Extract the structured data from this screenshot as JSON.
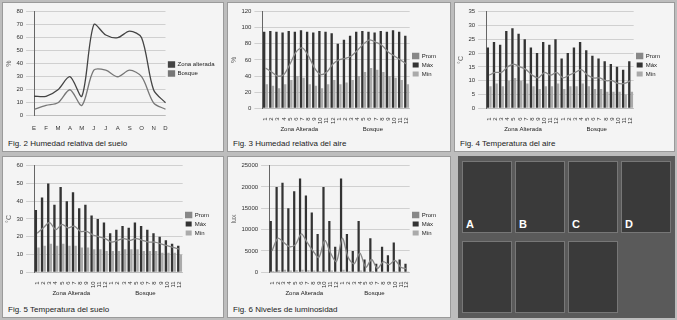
{
  "chart_data": [
    {
      "type": "line",
      "title": "Fig. 2 Humedad relativa del suelo",
      "y_label": "%",
      "categories": [
        "E",
        "F",
        "M",
        "A",
        "M",
        "J",
        "J",
        "A",
        "S",
        "O",
        "N",
        "D"
      ],
      "series": [
        {
          "name": "Zona alterada",
          "color": "#444444",
          "marker": "none",
          "values": [
            15,
            15,
            20,
            30,
            15,
            70,
            62,
            60,
            65,
            60,
            20,
            10
          ]
        },
        {
          "name": "Bosque",
          "color": "#777777",
          "marker": "none",
          "values": [
            5,
            8,
            10,
            20,
            8,
            35,
            35,
            30,
            35,
            30,
            10,
            5
          ]
        }
      ],
      "ylim": [
        0,
        80
      ],
      "yticks": [
        0,
        10,
        20,
        30,
        40,
        50,
        60,
        70,
        80
      ],
      "grid": true,
      "legend": "right"
    },
    {
      "type": "bar",
      "title": "Fig. 3 Humedad relativa del aire",
      "y_label": "%",
      "categories": [
        "1",
        "2",
        "3",
        "4",
        "5",
        "6",
        "7",
        "8",
        "9",
        "10",
        "11",
        "12",
        "1",
        "2",
        "3",
        "4",
        "5",
        "6",
        "7",
        "8",
        "9",
        "10",
        "11",
        "12"
      ],
      "group_labels": [
        "Zona Alterada",
        "Bosque"
      ],
      "series": [
        {
          "name": "Máx",
          "color": "#333333",
          "values": [
            95,
            96,
            95,
            94,
            96,
            95,
            97,
            95,
            94,
            96,
            95,
            93,
            80,
            85,
            90,
            95,
            96,
            95,
            94,
            96,
            95,
            97,
            95,
            90
          ]
        },
        {
          "name": "Mín",
          "color": "#aaaaaa",
          "values": [
            30,
            28,
            25,
            30,
            35,
            40,
            38,
            30,
            28,
            25,
            30,
            35,
            30,
            32,
            35,
            40,
            45,
            50,
            48,
            45,
            40,
            38,
            35,
            30
          ]
        },
        {
          "name": "Prom",
          "color": "#888888",
          "type": "line",
          "marker": "none",
          "values": [
            50,
            45,
            40,
            42,
            55,
            70,
            75,
            65,
            50,
            42,
            45,
            55,
            60,
            62,
            65,
            72,
            80,
            85,
            82,
            78,
            70,
            65,
            60,
            55
          ]
        }
      ],
      "ylim": [
        0,
        120
      ],
      "yticks": [
        0,
        20,
        40,
        60,
        80,
        100,
        120
      ],
      "grid": true,
      "legend": "right"
    },
    {
      "type": "bar",
      "title": "Fig. 4 Temperatura del aire",
      "y_label": "°C",
      "categories": [
        "1",
        "2",
        "3",
        "4",
        "5",
        "6",
        "7",
        "8",
        "9",
        "10",
        "11",
        "12",
        "1",
        "2",
        "3",
        "4",
        "5",
        "6",
        "7",
        "8",
        "9",
        "10",
        "11",
        "12"
      ],
      "group_labels": [
        "Zona Alterada",
        "Bosque"
      ],
      "series": [
        {
          "name": "Máx",
          "color": "#333333",
          "values": [
            22,
            24,
            23,
            28,
            29,
            27,
            25,
            22,
            20,
            24,
            23,
            25,
            18,
            20,
            22,
            24,
            21,
            19,
            18,
            17,
            16,
            15,
            14,
            17
          ]
        },
        {
          "name": "Mín",
          "color": "#aaaaaa",
          "values": [
            8,
            9,
            8,
            10,
            11,
            10,
            9,
            8,
            7,
            8,
            8,
            9,
            7,
            8,
            8,
            9,
            8,
            7,
            7,
            6,
            6,
            6,
            5,
            6
          ]
        },
        {
          "name": "Prom",
          "color": "#888888",
          "type": "line",
          "marker": "none",
          "values": [
            12,
            13,
            13,
            15,
            16,
            15,
            14,
            12,
            11,
            13,
            12,
            13,
            11,
            12,
            13,
            14,
            12,
            11,
            11,
            10,
            10,
            9,
            9,
            10
          ]
        }
      ],
      "ylim": [
        0,
        35
      ],
      "yticks": [
        0,
        5,
        10,
        15,
        20,
        25,
        30,
        35
      ],
      "grid": true,
      "legend": "right"
    },
    {
      "type": "bar",
      "title": "Fig. 5 Temperatura del suelo",
      "y_label": "°C",
      "categories": [
        "1",
        "2",
        "3",
        "4",
        "5",
        "6",
        "7",
        "8",
        "9",
        "10",
        "11",
        "12",
        "1",
        "2",
        "3",
        "4",
        "5",
        "6",
        "7",
        "8",
        "9",
        "10",
        "11",
        "12"
      ],
      "group_labels": [
        "Zona Alterada",
        "Bosque"
      ],
      "series": [
        {
          "name": "Máx",
          "color": "#333333",
          "values": [
            35,
            42,
            50,
            38,
            48,
            40,
            45,
            36,
            38,
            32,
            30,
            28,
            22,
            24,
            26,
            25,
            28,
            26,
            24,
            22,
            20,
            18,
            16,
            15
          ]
        },
        {
          "name": "Mín",
          "color": "#aaaaaa",
          "values": [
            14,
            15,
            16,
            15,
            16,
            15,
            15,
            14,
            14,
            13,
            13,
            12,
            12,
            12,
            13,
            13,
            13,
            12,
            12,
            12,
            11,
            11,
            11,
            10
          ]
        },
        {
          "name": "Prom",
          "color": "#888888",
          "type": "line",
          "marker": "none",
          "values": [
            22,
            25,
            28,
            24,
            27,
            25,
            26,
            23,
            23,
            21,
            20,
            19,
            17,
            18,
            19,
            18,
            19,
            18,
            17,
            17,
            16,
            15,
            14,
            13
          ]
        }
      ],
      "ylim": [
        0,
        60
      ],
      "yticks": [
        0,
        10,
        20,
        30,
        40,
        50,
        60
      ],
      "grid": true,
      "legend": "right"
    },
    {
      "type": "bar",
      "title": "Fig. 6 Niveles de luminosidad",
      "y_label": "lux",
      "categories": [
        "1",
        "2",
        "3",
        "4",
        "5",
        "6",
        "7",
        "8",
        "9",
        "10",
        "11",
        "12",
        "1",
        "2",
        "3",
        "4",
        "5",
        "6",
        "7",
        "8",
        "9",
        "10",
        "11",
        "12"
      ],
      "group_labels": [
        "Zona Alterada",
        "Bosque"
      ],
      "series": [
        {
          "name": "Máx",
          "color": "#333333",
          "values": [
            12000,
            20000,
            21000,
            15000,
            19000,
            22000,
            18000,
            14000,
            9000,
            20000,
            12000,
            6000,
            22000,
            9000,
            5000,
            12000,
            3000,
            8000,
            2000,
            6000,
            4000,
            7000,
            3000,
            2000
          ]
        },
        {
          "name": "Mín",
          "color": "#aaaaaa",
          "values": [
            300,
            500,
            600,
            400,
            500,
            600,
            500,
            400,
            300,
            500,
            400,
            200,
            600,
            300,
            200,
            400,
            100,
            300,
            100,
            200,
            150,
            250,
            100,
            80
          ]
        },
        {
          "name": "Prom",
          "color": "#888888",
          "type": "line",
          "marker": "none",
          "values": [
            5000,
            8000,
            7000,
            6000,
            6500,
            9000,
            7000,
            5000,
            3500,
            7500,
            4500,
            2500,
            8000,
            3500,
            2000,
            4500,
            1200,
            3000,
            900,
            2500,
            1800,
            2800,
            1200,
            800
          ]
        }
      ],
      "ylim": [
        0,
        25000
      ],
      "yticks": [
        0,
        5000,
        10000,
        15000,
        20000,
        25000
      ],
      "grid": true,
      "legend": "right"
    }
  ],
  "photos": {
    "labels": [
      "A",
      "B",
      "C",
      "D",
      null,
      null,
      null
    ]
  }
}
